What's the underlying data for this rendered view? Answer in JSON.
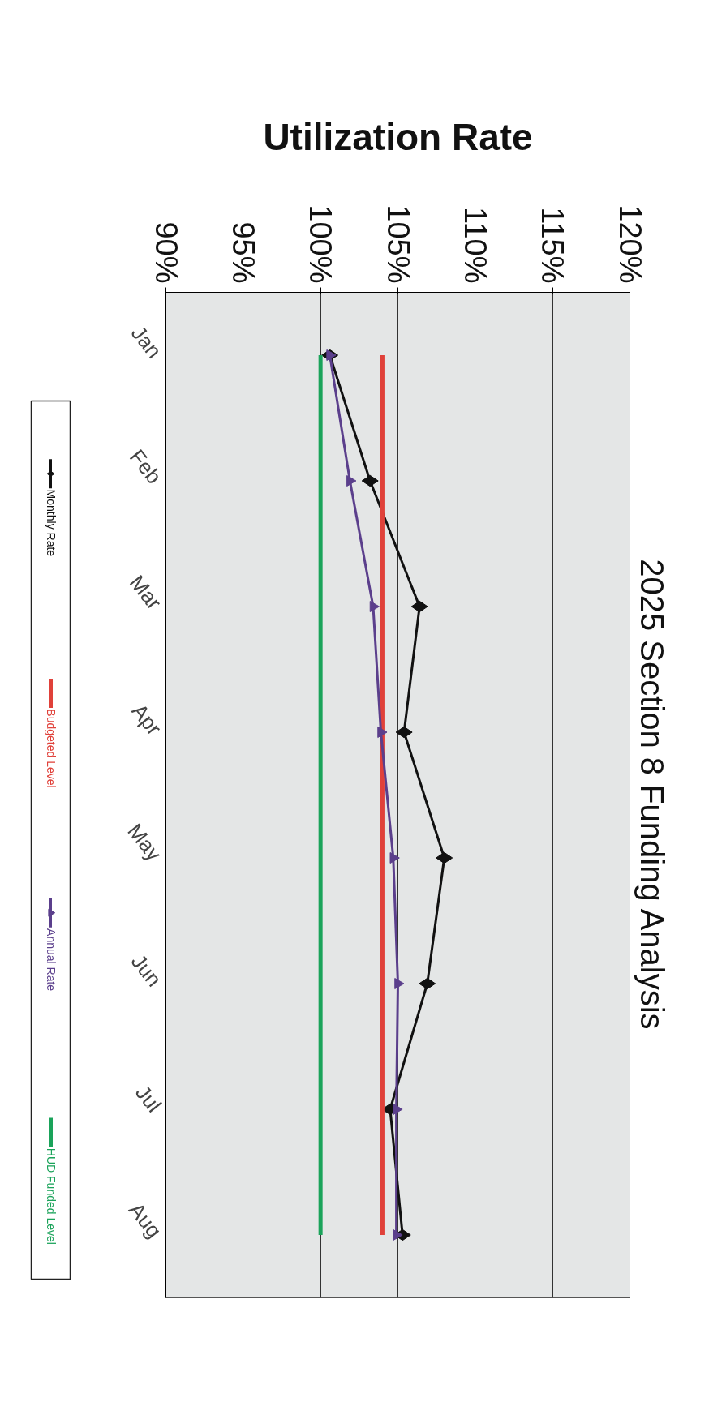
{
  "chart_data": {
    "type": "line",
    "title": "Utilization Rate",
    "subtitle": "2025 Section 8 Funding Analysis",
    "orientation": "horizontal",
    "categories": [
      "Jan",
      "Feb",
      "Mar",
      "Apr",
      "May",
      "Jun",
      "Jul",
      "Aug"
    ],
    "series": [
      {
        "name": "Monthly Rate",
        "color": "#111111",
        "marker": "diamond",
        "values": [
          100.6,
          103.2,
          106.4,
          105.4,
          108.0,
          106.9,
          104.5,
          105.3
        ]
      },
      {
        "name": "Budgeted Level",
        "color": "#e0413a",
        "marker": "none",
        "values": [
          104,
          104,
          104,
          104,
          104,
          104,
          104,
          104
        ]
      },
      {
        "name": "Annual Rate",
        "color": "#5b3f8c",
        "marker": "triangle",
        "values": [
          100.6,
          101.9,
          103.4,
          103.9,
          104.7,
          105.0,
          104.9,
          104.9
        ]
      },
      {
        "name": "HUD Funded Level",
        "color": "#1aa35a",
        "marker": "none",
        "values": [
          100,
          100,
          100,
          100,
          100,
          100,
          100,
          100
        ]
      }
    ],
    "xlim": [
      90,
      120
    ],
    "xticks": [
      {
        "value": 90,
        "label": "90%"
      },
      {
        "value": 95,
        "label": "95%"
      },
      {
        "value": 100,
        "label": "100%"
      },
      {
        "value": 105,
        "label": "105%"
      },
      {
        "value": 110,
        "label": "110%"
      },
      {
        "value": 115,
        "label": "115%"
      },
      {
        "value": 120,
        "label": "120%"
      }
    ],
    "grid": "x",
    "legend": "left"
  }
}
